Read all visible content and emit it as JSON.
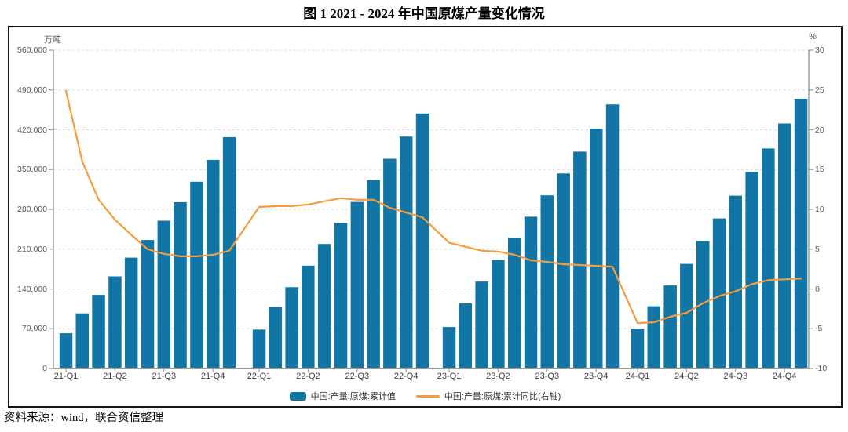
{
  "title": "图 1  2021 - 2024 年中国原煤产量变化情况",
  "source": "资料来源：wind，联合资信整理",
  "chart_data": {
    "type": "bar",
    "subtype": "bar+line dual axis",
    "title": "图 1  2021 - 2024 年中国原煤产量变化情况",
    "years": [
      "2021",
      "2022",
      "2023",
      "2024"
    ],
    "x_tick_labels": [
      "21-Q1",
      "21-Q2",
      "21-Q3",
      "21-Q4",
      "22-Q1",
      "22-Q2",
      "22-Q3",
      "22-Q4",
      "23-Q1",
      "23-Q2",
      "23-Q3",
      "23-Q4",
      "24-Q1",
      "24-Q2",
      "24-Q3",
      "24-Q4"
    ],
    "left_axis": {
      "unit": "万吨",
      "min": 0,
      "max": 560000,
      "tick_values": [
        0,
        70000,
        140000,
        210000,
        280000,
        350000,
        420000,
        490000,
        560000
      ],
      "tick_labels": [
        "0",
        "70,000",
        "140,000",
        "210,000",
        "280,000",
        "350,000",
        "420,000",
        "490,000",
        "560,000"
      ]
    },
    "right_axis": {
      "unit": "%",
      "min": -10,
      "max": 30,
      "tick_values": [
        -10,
        -5,
        0,
        5,
        10,
        15,
        20,
        25,
        30
      ],
      "tick_labels": [
        "-10",
        "-5",
        "0",
        "5",
        "10",
        "15",
        "20",
        "25",
        "30"
      ]
    },
    "bar_series": {
      "name": "中国:产量:原煤:累计值",
      "axis": "left",
      "color": "#1176A6",
      "values_by_year": [
        [
          62000,
          97000,
          129500,
          162000,
          195000,
          226000,
          260000,
          292500,
          328500,
          367000,
          407000
        ],
        [
          68500,
          108000,
          143000,
          181000,
          219000,
          256000,
          293000,
          331000,
          369000,
          408000,
          448500
        ],
        [
          73000,
          114500,
          153000,
          191000,
          230000,
          267000,
          304500,
          343000,
          381500,
          422000,
          464500
        ],
        [
          70000,
          109500,
          146000,
          184000,
          224500,
          264000,
          304000,
          345500,
          387000,
          431000,
          474500
        ]
      ]
    },
    "line_series": {
      "name": "中国:产量:原煤:累计同比(右轴)",
      "axis": "right",
      "color": "#F79C3D",
      "values_by_year": [
        [
          24.9,
          16.0,
          11.2,
          8.7,
          6.8,
          5.0,
          4.4,
          4.1,
          4.1,
          4.3,
          4.8
        ],
        [
          10.3,
          10.4,
          10.4,
          10.6,
          11.0,
          11.4,
          11.2,
          11.2,
          10.2,
          9.6,
          9.0
        ],
        [
          5.8,
          5.3,
          4.8,
          4.7,
          4.3,
          3.6,
          3.4,
          3.1,
          3.0,
          2.9,
          2.8
        ],
        [
          -4.3,
          -4.2,
          -3.5,
          -3.0,
          -1.8,
          -0.9,
          -0.3,
          0.6,
          1.1,
          1.2,
          1.3
        ]
      ]
    },
    "colors": {
      "grid": "#dcdcdc",
      "axis": "#9e9e9e",
      "tick_text": "#595959",
      "x_text": "#404040",
      "frame_border": "#10131c"
    },
    "grid": "horizontal dashed",
    "legend_position": "bottom-center"
  }
}
